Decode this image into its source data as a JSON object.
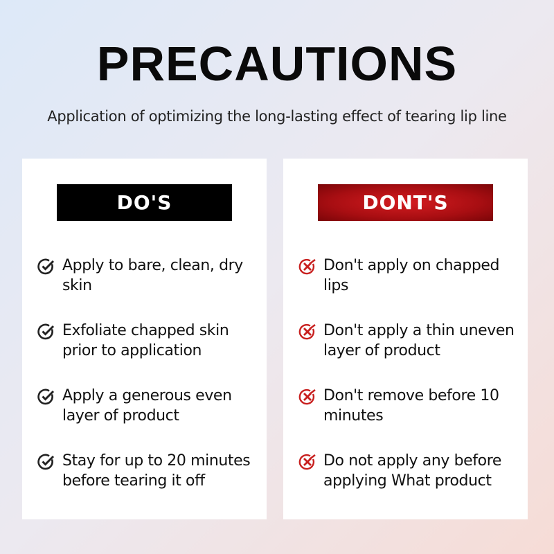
{
  "title": "PRECAUTIONS",
  "subtitle": "Application of optimizing the long-lasting effect of tearing lip line",
  "dos": {
    "header": "DO'S",
    "icon": "check-circle-icon",
    "items": [
      "Apply to bare, clean, dry skin",
      "Exfoliate chapped skin prior to application",
      "Apply a generous even layer of product",
      "Stay for up to 20 minutes before tearing it off"
    ]
  },
  "donts": {
    "header": "DONT'S",
    "icon": "x-circle-icon",
    "color": "#c8201f",
    "items": [
      "Don't apply on chapped lips",
      "Don't apply a thin uneven layer of product",
      "Don't remove before 10 minutes",
      "Do not apply any before applying What product"
    ]
  }
}
